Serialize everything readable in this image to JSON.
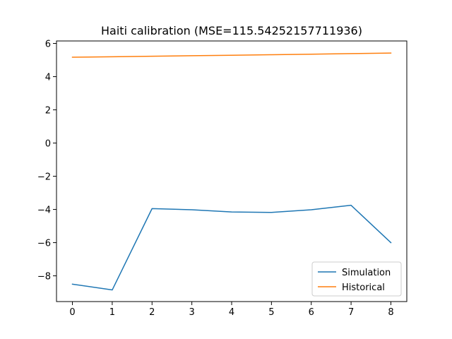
{
  "chart_data": {
    "type": "line",
    "title": "Haiti calibration (MSE=115.54252157711936)",
    "xlabel": "",
    "ylabel": "",
    "x": [
      0,
      1,
      2,
      3,
      4,
      5,
      6,
      7,
      8
    ],
    "xlim": [
      -0.4,
      8.4
    ],
    "ylim": [
      -9.55,
      6.15
    ],
    "xticks": [
      0,
      1,
      2,
      3,
      4,
      5,
      6,
      7,
      8
    ],
    "yticks": [
      6,
      4,
      2,
      0,
      -2,
      -4,
      -6,
      -8
    ],
    "ytick_labels": [
      "6",
      "4",
      "2",
      "0",
      "−2",
      "−4",
      "−6",
      "−8"
    ],
    "grid": false,
    "legend_position": "lower-right",
    "series": [
      {
        "name": "Simulation",
        "color": "#1f77b4",
        "values": [
          -8.5,
          -8.85,
          -3.95,
          -4.02,
          -4.15,
          -4.18,
          -4.02,
          -3.75,
          -6.0
        ]
      },
      {
        "name": "Historical",
        "color": "#ff7f0e",
        "values": [
          5.17,
          5.2,
          5.23,
          5.26,
          5.29,
          5.32,
          5.35,
          5.39,
          5.42
        ]
      }
    ]
  }
}
